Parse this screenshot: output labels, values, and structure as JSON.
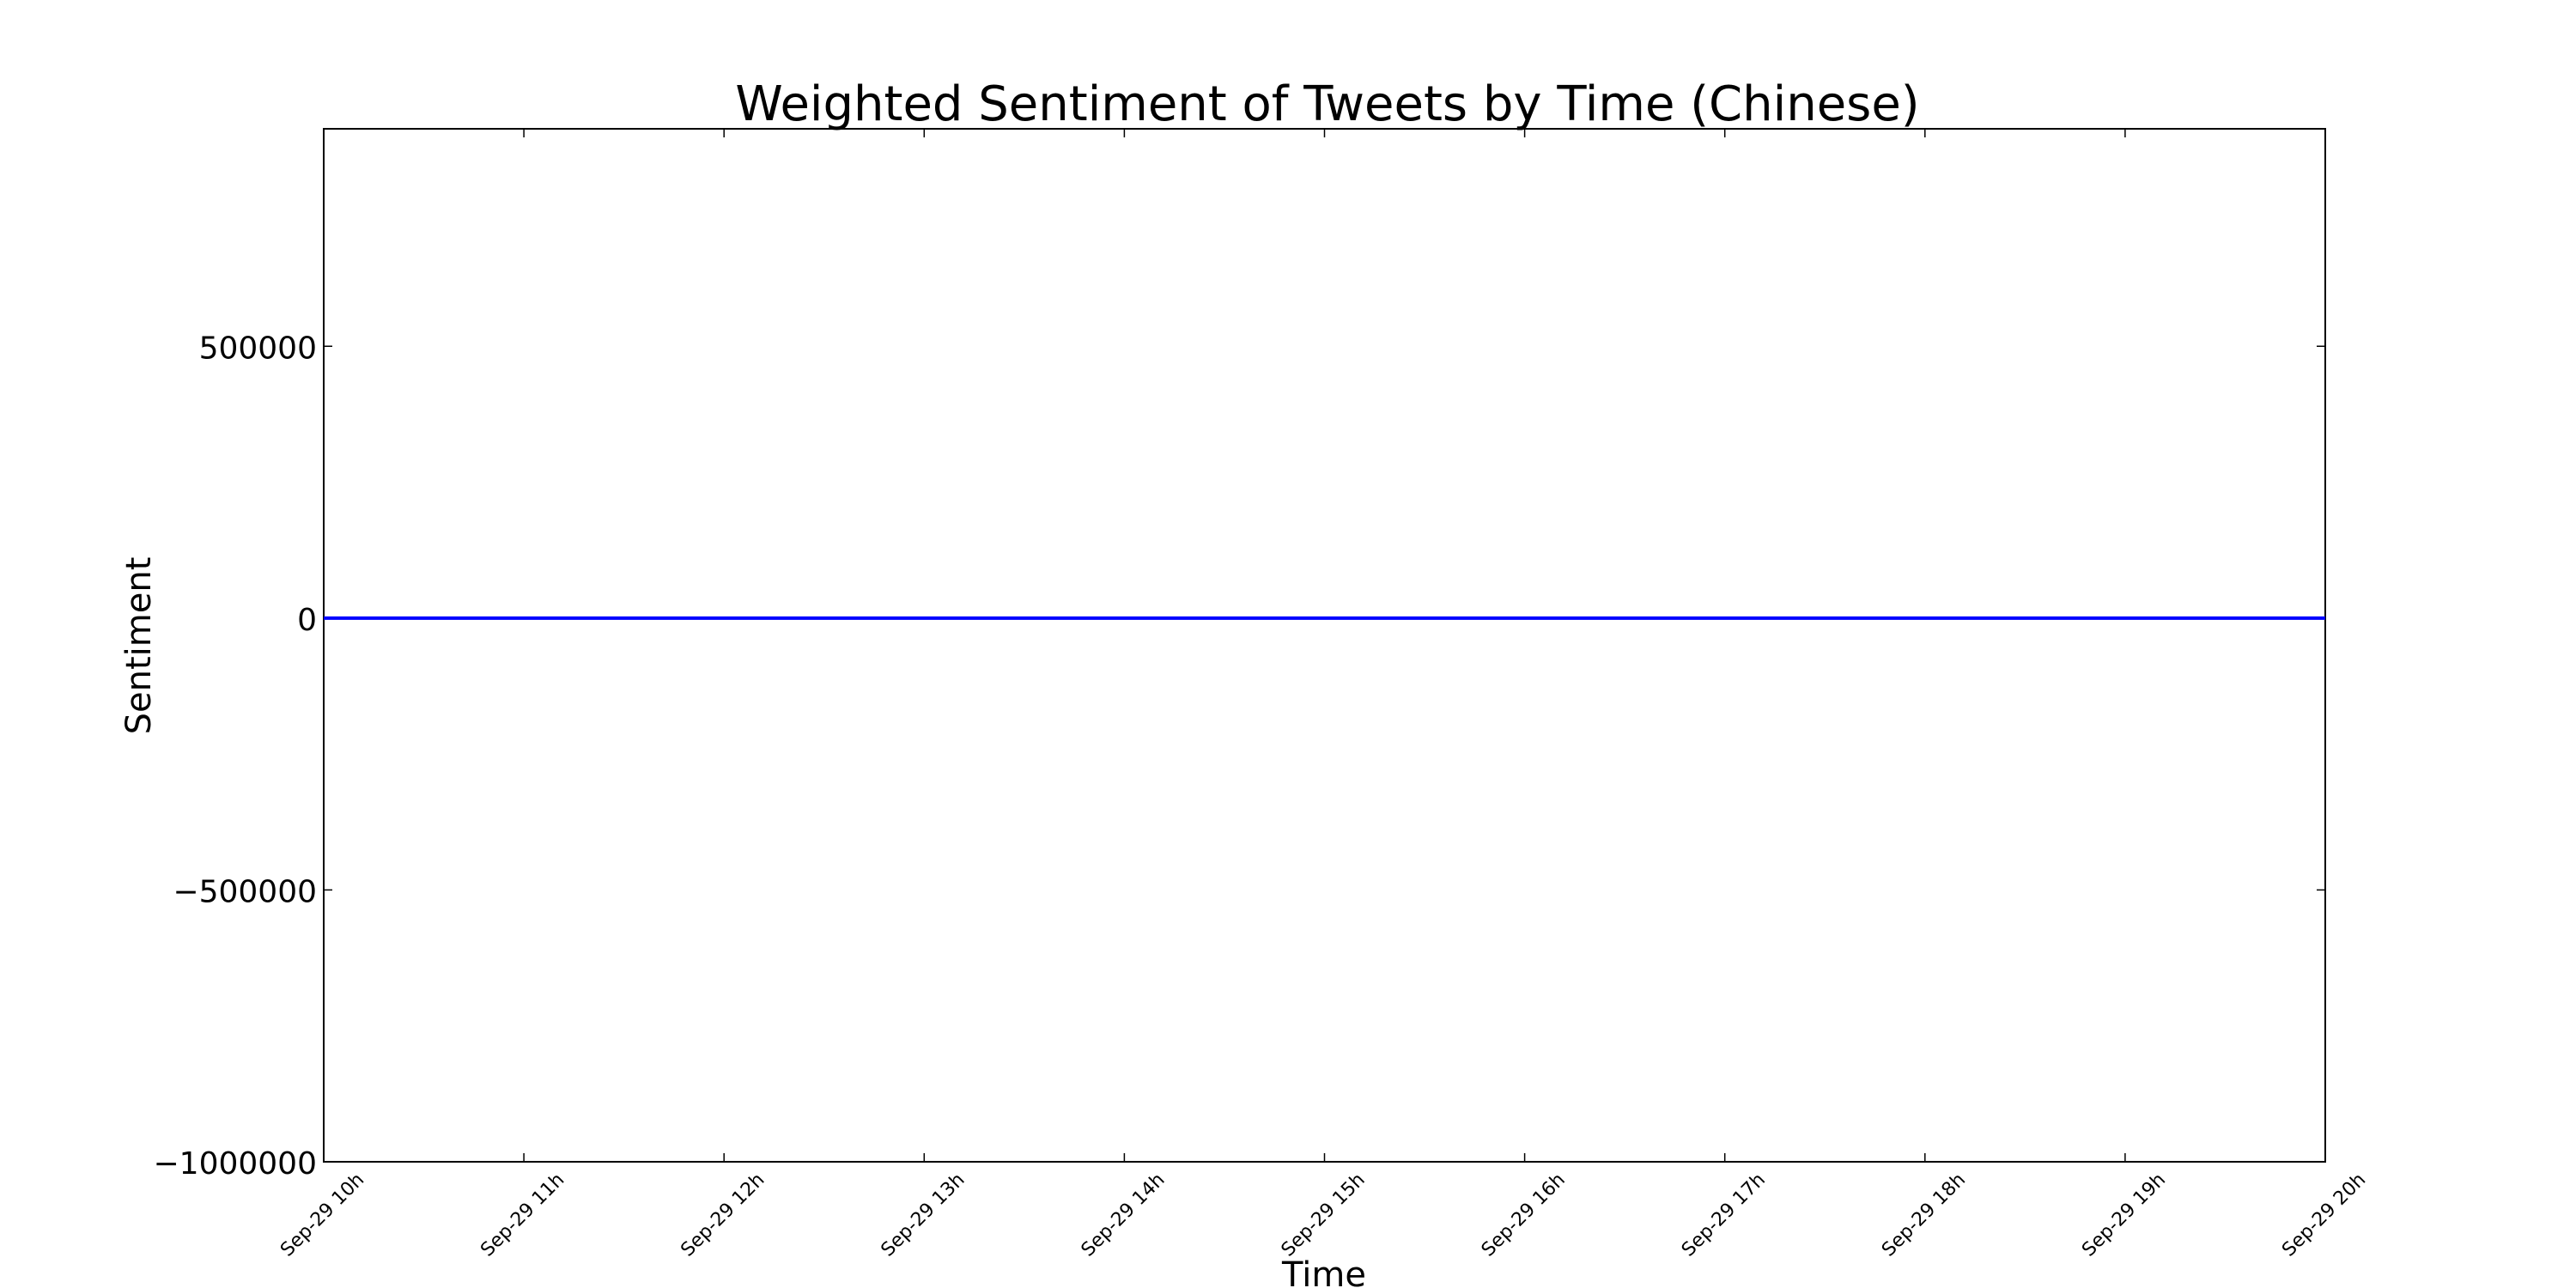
{
  "chart_data": {
    "type": "line",
    "title": "Weighted Sentiment of Tweets by Time (Chinese)",
    "xlabel": "Time",
    "ylabel": "Sentiment",
    "x": [
      "Sep-29 10h",
      "Sep-29 11h",
      "Sep-29 12h",
      "Sep-29 13h",
      "Sep-29 14h",
      "Sep-29 15h",
      "Sep-29 16h",
      "Sep-29 17h",
      "Sep-29 18h",
      "Sep-29 19h",
      "Sep-29 20h"
    ],
    "x_tick_labels": [
      "Sep-29 10h",
      "Sep-29 11h",
      "Sep-29 12h",
      "Sep-29 13h",
      "Sep-29 14h",
      "Sep-29 15h",
      "Sep-29 16h",
      "Sep-29 17h",
      "Sep-29 18h",
      "Sep-29 19h",
      "Sep-29 20h"
    ],
    "y_ticks": [
      500000,
      0,
      -500000,
      -1000000
    ],
    "y_tick_labels": [
      "500000",
      "0",
      "−500000",
      "−1000000"
    ],
    "ylim": [
      -1000000,
      900000
    ],
    "series": [
      {
        "values": [
          0,
          0,
          0,
          0,
          0,
          0,
          0,
          0,
          0,
          0,
          0
        ],
        "color": "#0000ff"
      }
    ],
    "grid": false,
    "legend": "none",
    "colors": {
      "line": "#0000ff",
      "axes": "#000000",
      "background": "#ffffff"
    }
  }
}
